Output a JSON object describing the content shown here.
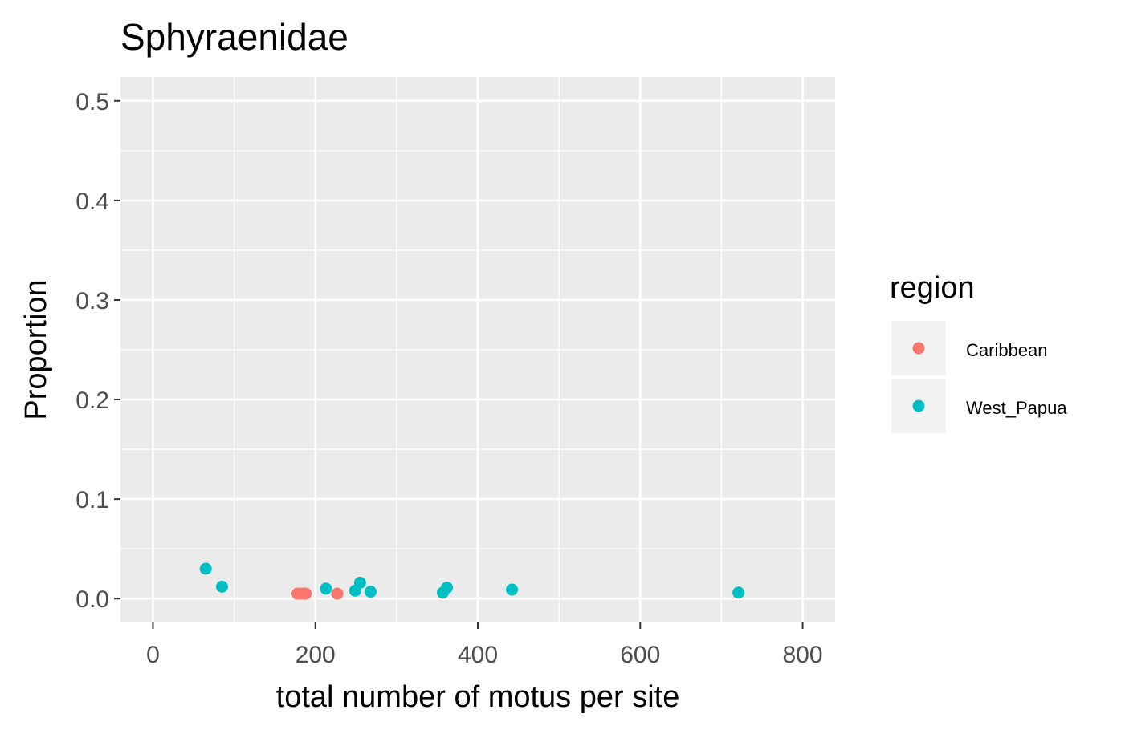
{
  "chart_data": {
    "type": "scatter",
    "title": "Sphyraenidae",
    "xlabel": "total number of motus per site",
    "ylabel": "Proportion",
    "xlim": [
      -40,
      840
    ],
    "ylim": [
      -0.024,
      0.524
    ],
    "x_ticks": [
      0,
      200,
      400,
      600,
      800
    ],
    "x_tick_labels": [
      "0",
      "200",
      "400",
      "600",
      "800"
    ],
    "y_ticks": [
      0.0,
      0.1,
      0.2,
      0.3,
      0.4,
      0.5
    ],
    "y_tick_labels": [
      "0.0",
      "0.1",
      "0.2",
      "0.3",
      "0.4",
      "0.5"
    ],
    "grid": true,
    "panel_background": "#ebebeb",
    "legend": {
      "title": "region",
      "position": "right"
    },
    "series": [
      {
        "name": "Caribbean",
        "color": "#f8766d",
        "points": [
          {
            "x": 178,
            "y": 0.005
          },
          {
            "x": 182,
            "y": 0.005
          },
          {
            "x": 185,
            "y": 0.005
          },
          {
            "x": 188,
            "y": 0.005
          },
          {
            "x": 227,
            "y": 0.005
          }
        ]
      },
      {
        "name": "West_Papua",
        "color": "#00bfc4",
        "points": [
          {
            "x": 65,
            "y": 0.03
          },
          {
            "x": 85,
            "y": 0.012
          },
          {
            "x": 213,
            "y": 0.01
          },
          {
            "x": 249,
            "y": 0.008
          },
          {
            "x": 255,
            "y": 0.016
          },
          {
            "x": 268,
            "y": 0.007
          },
          {
            "x": 357,
            "y": 0.006
          },
          {
            "x": 362,
            "y": 0.011
          },
          {
            "x": 442,
            "y": 0.009
          },
          {
            "x": 721,
            "y": 0.006
          }
        ]
      }
    ]
  }
}
